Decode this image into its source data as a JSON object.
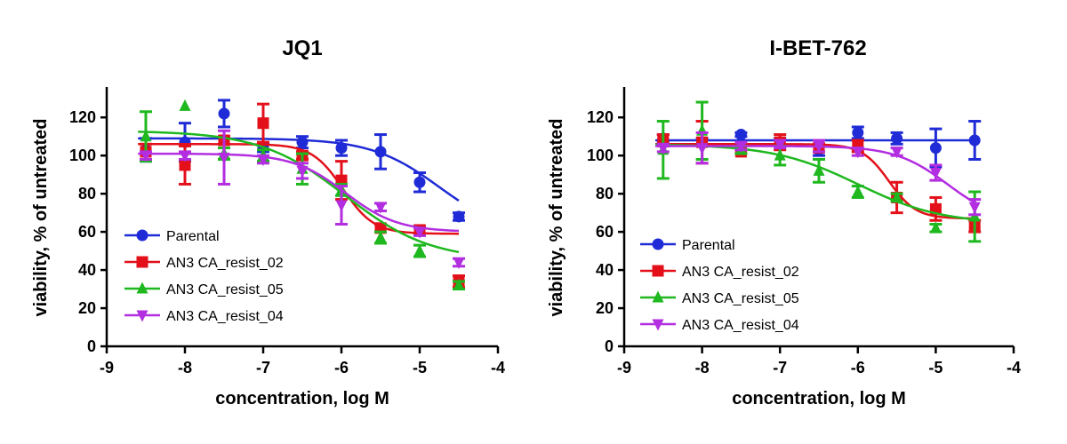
{
  "chart_data": [
    {
      "type": "scatter",
      "title": "JQ1",
      "xlabel": "concentration, log M",
      "ylabel": "viability, % of untreated",
      "xlim": [
        -9,
        -4
      ],
      "ylim": [
        0,
        135
      ],
      "xticks": [
        "-9",
        "-8",
        "-7",
        "-6",
        "-5",
        "-4"
      ],
      "yticks": [
        "0",
        "20",
        "40",
        "60",
        "80",
        "100",
        "120"
      ],
      "legend_position": "lower-left",
      "series": [
        {
          "name": "Parental",
          "color": "#1f2bd6",
          "marker": "circle",
          "x": [
            -8.5,
            -8,
            -7.5,
            -7,
            -6.5,
            -6,
            -5.5,
            -5,
            -4.5
          ],
          "y": [
            103,
            107,
            122,
            104,
            107,
            104,
            102,
            86,
            68
          ],
          "err": [
            6,
            10,
            7,
            2,
            3,
            4,
            9,
            5,
            2
          ],
          "fit": {
            "top": 109,
            "bottom": 58,
            "logec50": -4.75,
            "hill": 1
          }
        },
        {
          "name": "AN3 CA_resist_02",
          "color": "#e3101a",
          "marker": "square",
          "x": [
            -8.5,
            -8,
            -7.5,
            -7,
            -6.5,
            -6,
            -5.5,
            -5,
            -4.5
          ],
          "y": [
            102,
            95,
            108,
            117,
            100,
            87,
            62,
            61,
            34
          ],
          "err": [
            4,
            10,
            2,
            10,
            2,
            10,
            2,
            2,
            3
          ],
          "fit": {
            "top": 106,
            "bottom": 59,
            "logec50": -5.98,
            "hill": 2.2
          }
        },
        {
          "name": "AN3 CA_resist_05",
          "color": "#1fb81f",
          "marker": "triangle-up",
          "x": [
            -8.5,
            -8,
            -7.5,
            -7,
            -6.5,
            -6,
            -5.5,
            -5,
            -4.5
          ],
          "y": [
            110,
            126,
            101,
            100,
            93,
            82,
            57,
            50,
            32
          ],
          "err": [
            13,
            0,
            3,
            3,
            8,
            3,
            3,
            3,
            2
          ],
          "fit": {
            "top": 113,
            "bottom": 45,
            "logec50": -5.95,
            "hill": 0.8
          }
        },
        {
          "name": "AN3 CA_resist_04",
          "color": "#b22ee0",
          "marker": "triangle-down",
          "x": [
            -8.5,
            -8,
            -7.5,
            -7,
            -6.5,
            -6,
            -5.5,
            -5,
            -4.5
          ],
          "y": [
            100,
            100,
            99,
            98,
            92,
            74,
            73,
            60,
            44
          ],
          "err": [
            2,
            2,
            14,
            2,
            4,
            10,
            2,
            2,
            2
          ],
          "fit": {
            "top": 101,
            "bottom": 60,
            "logec50": -5.95,
            "hill": 1.3
          }
        }
      ]
    },
    {
      "type": "scatter",
      "title": "I-BET-762",
      "xlabel": "concentration, log M",
      "ylabel": "viability, % of untreated",
      "xlim": [
        -9,
        -4
      ],
      "ylim": [
        0,
        135
      ],
      "xticks": [
        "-9",
        "-8",
        "-7",
        "-6",
        "-5",
        "-4"
      ],
      "yticks": [
        "0",
        "20",
        "40",
        "60",
        "80",
        "100",
        "120"
      ],
      "legend_position": "lower-left",
      "series": [
        {
          "name": "Parental",
          "color": "#1f2bd6",
          "marker": "circle",
          "x": [
            -8.5,
            -8,
            -7.5,
            -7,
            -6.5,
            -6,
            -5.5,
            -5,
            -4.5
          ],
          "y": [
            109,
            107,
            111,
            107,
            103,
            112,
            109,
            104,
            108
          ],
          "err": [
            2,
            2,
            1,
            2,
            3,
            3,
            3,
            10,
            10
          ],
          "fit": {
            "top": 108,
            "bottom": 108,
            "logec50": -6,
            "hill": 1
          }
        },
        {
          "name": "AN3 CA_resist_02",
          "color": "#e3101a",
          "marker": "square",
          "x": [
            -8.5,
            -8,
            -7.5,
            -7,
            -6.5,
            -6,
            -5.5,
            -5,
            -4.5
          ],
          "y": [
            108,
            107,
            102,
            107,
            104,
            105,
            78,
            72,
            63
          ],
          "err": [
            3,
            11,
            1,
            4,
            2,
            3,
            8,
            6,
            3
          ],
          "fit": {
            "top": 106,
            "bottom": 67,
            "logec50": -5.6,
            "hill": 2.5
          }
        },
        {
          "name": "AN3 CA_resist_05",
          "color": "#1fb81f",
          "marker": "triangle-up",
          "x": [
            -8.5,
            -8,
            -7.5,
            -7,
            -6.5,
            -6,
            -5.5,
            -5,
            -4.5
          ],
          "y": [
            103,
            113,
            103,
            100,
            92,
            81,
            78,
            62,
            68
          ],
          "err": [
            15,
            15,
            2,
            5,
            6,
            3,
            2,
            2,
            13
          ],
          "fit": {
            "top": 106,
            "bottom": 64,
            "logec50": -6,
            "hill": 0.8
          }
        },
        {
          "name": "AN3 CA_resist_04",
          "color": "#b22ee0",
          "marker": "triangle-down",
          "x": [
            -8.5,
            -8,
            -7.5,
            -7,
            -6.5,
            -6,
            -5.5,
            -5,
            -4.5
          ],
          "y": [
            104,
            104,
            105,
            106,
            105,
            102,
            102,
            91,
            73
          ],
          "err": [
            2,
            8,
            2,
            2,
            3,
            2,
            2,
            4,
            4
          ],
          "fit": {
            "top": 105,
            "bottom": 65,
            "logec50": -4.85,
            "hill": 1.3
          }
        }
      ]
    }
  ]
}
